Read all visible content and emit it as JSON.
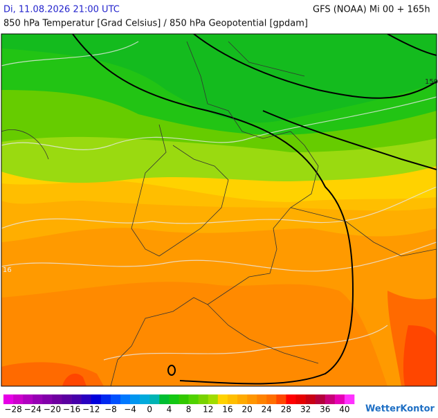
{
  "header": {
    "valid_time": "Di, 11.08.2026 21:00 UTC",
    "model_run": "GFS (NOAA) Mi 00 + 165h",
    "subtitle": "850 hPa Temperatur [Grad Celsius] / 850 hPa Geopotential [gpdam]"
  },
  "map": {
    "contour_labels": [
      "150",
      "16"
    ]
  },
  "legend": {
    "lim": [
      -30,
      42
    ],
    "colors": [
      "#e600e6",
      "#cc00cc",
      "#b000c0",
      "#9600b4",
      "#8200aa",
      "#6e00a0",
      "#5a00a0",
      "#4600aa",
      "#2800c0",
      "#0000dc",
      "#0028f0",
      "#0050ff",
      "#0078ff",
      "#0096f0",
      "#00aadc",
      "#00b4b4",
      "#00be32",
      "#14c814",
      "#32c800",
      "#50d200",
      "#78d200",
      "#a0dc00",
      "#ffd200",
      "#ffbe00",
      "#ffaa00",
      "#ff9600",
      "#ff8200",
      "#ff6e00",
      "#ff4600",
      "#ff0000",
      "#e60000",
      "#c80014",
      "#b4003c",
      "#c80078",
      "#e600b4",
      "#ff32ff"
    ],
    "ticks": [
      {
        "value": -28,
        "label": "−28"
      },
      {
        "value": -24,
        "label": "−24"
      },
      {
        "value": -20,
        "label": "−20"
      },
      {
        "value": -16,
        "label": "−16"
      },
      {
        "value": -12,
        "label": "−12"
      },
      {
        "value": -8,
        "label": "−8"
      },
      {
        "value": -4,
        "label": "−4"
      },
      0,
      4,
      8,
      12,
      16,
      20,
      24,
      28,
      32,
      36,
      40
    ]
  },
  "brand": "WetterKontor"
}
